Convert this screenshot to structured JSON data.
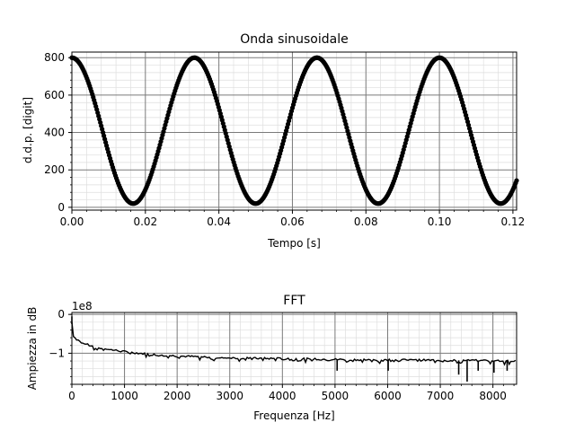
{
  "chart_data": [
    {
      "type": "scatter",
      "title": "Onda sinusoidale",
      "xlabel": "Tempo [s]",
      "ylabel": "d.d.p. [digit]",
      "xlim": [
        0.0,
        0.121
      ],
      "ylim": [
        -15,
        830
      ],
      "xticks": [
        "0.00",
        "0.02",
        "0.04",
        "0.06",
        "0.08",
        "0.10",
        "0.12"
      ],
      "xtick_values": [
        0.0,
        0.02,
        0.04,
        0.06,
        0.08,
        0.1,
        0.12
      ],
      "yticks": [
        "0",
        "200",
        "400",
        "600",
        "800"
      ],
      "ytick_values": [
        0,
        200,
        400,
        600,
        800
      ],
      "grid": "major and minor",
      "series": [
        {
          "style": "black dots joined by line",
          "model": "y = 410 + 390*cos(2*pi*30*t)",
          "offset": 410,
          "amplitude": 390,
          "frequency_hz": 30,
          "t_start": 0.0,
          "t_end": 0.121,
          "samples": 500
        }
      ]
    },
    {
      "type": "line",
      "title": "FFT",
      "xlabel": "Frequenza [Hz]",
      "ylabel": "Ampiezza in dB",
      "y_offset_label": "1e8",
      "xlim": [
        0,
        8450
      ],
      "ylim": [
        -1.8,
        0.05
      ],
      "xticks": [
        "0",
        "1000",
        "2000",
        "3000",
        "4000",
        "5000",
        "6000",
        "7000",
        "8000"
      ],
      "xtick_values": [
        0,
        1000,
        2000,
        3000,
        4000,
        5000,
        6000,
        7000,
        8000
      ],
      "yticks": [
        "0",
        "−1"
      ],
      "ytick_values": [
        0,
        -1
      ],
      "grid": "major and minor",
      "series": [
        {
          "style": "black line",
          "points": [
            [
              0,
              -0.2
            ],
            [
              30,
              -0.55
            ],
            [
              60,
              -0.6
            ],
            [
              100,
              -0.65
            ],
            [
              150,
              -0.68
            ],
            [
              200,
              -0.72
            ],
            [
              300,
              -0.78
            ],
            [
              500,
              -0.85
            ],
            [
              750,
              -0.91
            ],
            [
              1000,
              -0.96
            ],
            [
              1500,
              -1.03
            ],
            [
              2000,
              -1.07
            ],
            [
              3000,
              -1.12
            ],
            [
              4000,
              -1.14
            ],
            [
              5000,
              -1.16
            ],
            [
              6000,
              -1.17
            ],
            [
              7000,
              -1.18
            ],
            [
              8000,
              -1.19
            ],
            [
              8450,
              -1.19
            ]
          ],
          "dips": [
            [
              5040,
              -1.45
            ],
            [
              6010,
              -1.45
            ],
            [
              7350,
              -1.55
            ],
            [
              7510,
              -1.73
            ],
            [
              8020,
              -1.5
            ],
            [
              8270,
              -1.45
            ],
            [
              7720,
              -1.45
            ]
          ]
        }
      ]
    }
  ]
}
